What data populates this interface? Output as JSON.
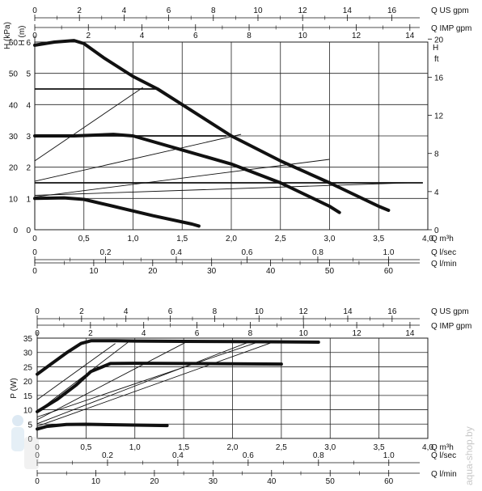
{
  "watermark": "aqua-shop.by",
  "chart_data": [
    {
      "type": "line",
      "name": "head-curves",
      "flow_axes": {
        "q_m3h": {
          "ticks": [
            "0",
            "0,5",
            "1,0",
            "1,5",
            "2,0",
            "2,5",
            "3,0",
            "3,5",
            "4,0"
          ],
          "unit": "Q m³h",
          "lim": [
            0,
            4.0
          ]
        },
        "q_lsec": {
          "ticks": [
            "0",
            "0.2",
            "0.4",
            "0.6",
            "0.8",
            "1.0"
          ],
          "unit": "Q l/sec",
          "lim": [
            0,
            1.111
          ]
        },
        "q_lmin": {
          "ticks": [
            "0",
            "10",
            "20",
            "30",
            "40",
            "50",
            "60"
          ],
          "unit": "Q l/min",
          "lim": [
            0,
            66.67
          ]
        },
        "q_usgpm": {
          "ticks": [
            "0",
            "2",
            "4",
            "6",
            "8",
            "10",
            "12",
            "14",
            "16"
          ],
          "unit": "Q US gpm",
          "lim": [
            0,
            17.61
          ]
        },
        "q_impgpm": {
          "ticks": [
            "0",
            "2",
            "4",
            "6",
            "8",
            "10",
            "12",
            "14"
          ],
          "unit": "Q IMP gpm",
          "lim": [
            0,
            14.67
          ]
        }
      },
      "y_axes": {
        "kpa": {
          "label": "H (kPa)",
          "ticks": [
            "0",
            "10",
            "20",
            "30",
            "40",
            "50",
            "60"
          ],
          "lim": [
            0,
            60
          ]
        },
        "m": {
          "label": "H (m)",
          "ticks": [
            "0",
            "1",
            "2",
            "3",
            "4",
            "5",
            "6"
          ],
          "lim": [
            0,
            6
          ]
        },
        "ft": {
          "label": "H",
          "unit": "ft",
          "ticks": [
            "0",
            "4",
            "8",
            "12",
            "16",
            "20"
          ],
          "lim": [
            0,
            20
          ]
        }
      },
      "grid": true,
      "series": [
        {
          "x": [
            0,
            0.2,
            0.4,
            0.5,
            0.7,
            1.0,
            1.25,
            1.5,
            2.0,
            2.5,
            3.0,
            3.5,
            3.6
          ],
          "y": [
            5.9,
            6.0,
            6.05,
            5.95,
            5.5,
            4.9,
            4.5,
            4.0,
            3.0,
            2.2,
            1.5,
            0.75,
            0.62
          ]
        },
        {
          "x": [
            0,
            0.4,
            0.8,
            1.0,
            1.5,
            2.0,
            2.5,
            3.0,
            3.1
          ],
          "y": [
            3.0,
            3.0,
            3.05,
            3.0,
            2.55,
            2.1,
            1.5,
            0.75,
            0.55
          ]
        },
        {
          "x": [
            0,
            0.3,
            0.5,
            0.8,
            1.2,
            1.6,
            1.67
          ],
          "y": [
            1.0,
            1.02,
            0.97,
            0.75,
            0.45,
            0.18,
            0.12
          ]
        }
      ],
      "limit_lines": [
        {
          "x": [
            0,
            1.25
          ],
          "y": [
            4.5,
            4.5
          ]
        },
        {
          "x": [
            0,
            1.95
          ],
          "y": [
            3.0,
            3.0
          ]
        },
        {
          "x": [
            0,
            3.95
          ],
          "y": [
            1.5,
            1.5
          ]
        }
      ],
      "control_lines": [
        {
          "x": [
            0,
            1.1
          ],
          "y": [
            2.2,
            4.55
          ]
        },
        {
          "x": [
            0,
            2.1
          ],
          "y": [
            1.55,
            3.05
          ]
        },
        {
          "x": [
            0,
            3.0
          ],
          "y": [
            1.05,
            2.25
          ]
        },
        {
          "x": [
            0,
            3.8
          ],
          "y": [
            1.1,
            1.5
          ]
        }
      ]
    },
    {
      "type": "line",
      "name": "power-curves",
      "flow_axes": {
        "q_m3h": {
          "ticks": [
            "0",
            "0,5",
            "1,0",
            "1,5",
            "2,0",
            "2,5",
            "3,0",
            "3,5",
            "4,0"
          ],
          "unit": "Q m³h",
          "lim": [
            0,
            4.0
          ]
        },
        "q_lsec": {
          "ticks": [
            "0",
            "0.2",
            "0.4",
            "0.6",
            "0.8",
            "1.0"
          ],
          "unit": "Q l/sec",
          "lim": [
            0,
            1.111
          ]
        },
        "q_lmin": {
          "ticks": [
            "0",
            "10",
            "20",
            "30",
            "40",
            "50",
            "60"
          ],
          "unit": "Q l/min",
          "lim": [
            0,
            66.67
          ]
        },
        "q_usgpm": {
          "ticks": [
            "0",
            "2",
            "4",
            "6",
            "8",
            "10",
            "12",
            "14",
            "16"
          ],
          "unit": "Q US gpm",
          "lim": [
            0,
            17.61
          ]
        },
        "q_impgpm": {
          "ticks": [
            "0",
            "2",
            "4",
            "6",
            "8",
            "10",
            "12",
            "14"
          ],
          "unit": "Q IMP gpm",
          "lim": [
            0,
            14.67
          ]
        }
      },
      "y_axes": {
        "w": {
          "label": "P (W)",
          "ticks": [
            "0",
            "5",
            "10",
            "15",
            "20",
            "25",
            "30",
            "35"
          ],
          "lim": [
            0,
            37.5
          ]
        }
      },
      "grid": true,
      "series": [
        {
          "x": [
            0,
            0.15,
            0.3,
            0.45,
            0.55,
            0.8,
            1.0,
            1.5,
            2.0,
            2.5,
            2.88
          ],
          "y": [
            24,
            28,
            32,
            35.5,
            36.5,
            36.5,
            36.4,
            36.3,
            36.2,
            36.1,
            36.0
          ]
        },
        {
          "x": [
            0,
            0.2,
            0.4,
            0.55,
            0.75,
            1.0,
            1.5,
            2.0,
            2.5
          ],
          "y": [
            10,
            14.5,
            20,
            25,
            28,
            28.1,
            28.0,
            27.9,
            27.8
          ]
        },
        {
          "x": [
            0,
            0.1,
            0.3,
            0.5,
            1.0,
            1.33
          ],
          "y": [
            3.5,
            4.5,
            5.2,
            5.3,
            5.0,
            4.8
          ]
        }
      ],
      "control_lines": [
        {
          "x": [
            0,
            0.8
          ],
          "y": [
            14.5,
            35.5
          ]
        },
        {
          "x": [
            0,
            0.95
          ],
          "y": [
            10.0,
            36.5
          ]
        },
        {
          "x": [
            0,
            1.55
          ],
          "y": [
            7.0,
            36.5
          ]
        },
        {
          "x": [
            0,
            2.2
          ],
          "y": [
            5.5,
            36.5
          ]
        },
        {
          "x": [
            0,
            2.3
          ],
          "y": [
            8.0,
            36.5
          ]
        },
        {
          "x": [
            0,
            2.4
          ],
          "y": [
            4.5,
            35.8
          ]
        }
      ]
    }
  ]
}
